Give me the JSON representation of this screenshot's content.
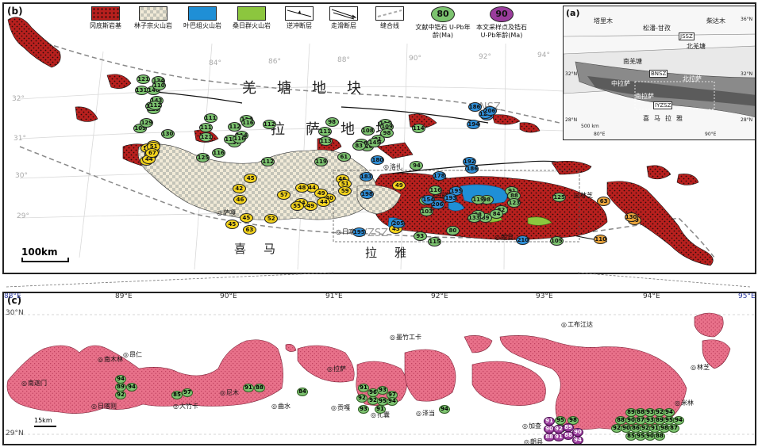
{
  "panel_b": {
    "label": "(b)",
    "legend": [
      {
        "key": "gangdese",
        "label": "冈底斯岩基",
        "swatch": "#b8201e"
      },
      {
        "key": "linzizong",
        "label": "林子宗火山岩",
        "swatch": "#c9bfa8"
      },
      {
        "key": "yeba",
        "label": "叶巴组火山岩",
        "swatch": "#1f8fd6"
      },
      {
        "key": "sangri",
        "label": "桑日群火山岩",
        "swatch": "#8cc63e"
      },
      {
        "key": "thrust",
        "label": "逆冲断层"
      },
      {
        "key": "strike_slip",
        "label": "走滑断层"
      },
      {
        "key": "suture",
        "label": "缝合线"
      },
      {
        "key": "lit_age",
        "label": "文献中锆石 U-Pb年龄(Ma)",
        "symbol_value": "80",
        "color": "#7cc36f"
      },
      {
        "key": "this_age",
        "label": "本文采样点及锆石 U-Pb年龄(Ma)",
        "symbol_value": "90",
        "color": "#9a3c9c"
      }
    ],
    "region_labels": {
      "qiangtang": "羌塘地块",
      "lhasa": "拉萨地块",
      "himalaya_west": "喜马",
      "himalaya_east": "拉雅"
    },
    "suture_labels": {
      "bnsz": "BNSZ",
      "yzsz": "YZSZ"
    },
    "cities": {
      "lhasa": "拉萨",
      "luozha": "洛扎",
      "linzhi": "林芝",
      "shigatse": "日喀则",
      "sagar": "萨嘎",
      "langxian": "朗县"
    },
    "lon_ticks": [
      "84°",
      "86°",
      "88°",
      "90°",
      "92°",
      "94°"
    ],
    "lat_ticks": [
      "32°",
      "31°",
      "30°",
      "29°"
    ],
    "scale": "100km",
    "ages_green": [
      "110",
      "131",
      "117",
      "109",
      "143",
      "129",
      "134",
      "146",
      "110",
      "112",
      "121",
      "130",
      "107",
      "111",
      "111",
      "125",
      "114",
      "116",
      "114",
      "112",
      "116",
      "116",
      "111",
      "112",
      "121",
      "112",
      "116",
      "111",
      "118",
      "119",
      "81",
      "61",
      "116",
      "108",
      "109",
      "145",
      "98",
      "94",
      "113",
      "114",
      "83",
      "98",
      "89",
      "95",
      "88",
      "93",
      "82",
      "80",
      "91",
      "98",
      "88",
      "84",
      "116",
      "105",
      "103",
      "125",
      "133",
      "123",
      "115",
      "119"
    ],
    "ages_yellow": [
      "51",
      "57",
      "52",
      "50",
      "52",
      "44",
      "50",
      "51",
      "51",
      "67",
      "49",
      "42",
      "44",
      "45",
      "40",
      "52",
      "46",
      "44",
      "51",
      "44",
      "45",
      "43",
      "46",
      "49",
      "55",
      "59",
      "63",
      "48",
      "49",
      "45",
      "57"
    ],
    "ages_blue": [
      "175",
      "186",
      "120",
      "194",
      "206",
      "206",
      "183",
      "154",
      "195",
      "195",
      "205",
      "192",
      "178",
      "186",
      "193",
      "180",
      "210",
      "198"
    ],
    "ages_orange": [
      "59",
      "63",
      "130",
      "110"
    ]
  },
  "panel_a": {
    "label": "(a)",
    "places": [
      "塔里木",
      "柴达木",
      "松潘-甘孜",
      "北羌塘",
      "南羌塘",
      "中拉萨",
      "北拉萨",
      "南拉萨",
      "喜马拉雅"
    ],
    "sutures": [
      "JSSZ",
      "BNSZ",
      "IYZSZ"
    ],
    "ticks": [
      "80°E",
      "90°E",
      "36°N",
      "32°N",
      "28°N",
      "32°N",
      "28°N"
    ],
    "scale": "500 km"
  },
  "panel_c": {
    "label": "(c)",
    "lon_ticks": [
      "88°E",
      "89°E",
      "90°E",
      "91°E",
      "92°E",
      "93°E",
      "94°E",
      "95°E"
    ],
    "lat_ticks": [
      "30°N",
      "29°N"
    ],
    "scale": "15km",
    "cities": [
      {
        "name": "南木林"
      },
      {
        "name": "昂仁"
      },
      {
        "name": "南迦门"
      },
      {
        "name": "日喀则"
      },
      {
        "name": "大竹卡"
      },
      {
        "name": "尼木"
      },
      {
        "name": "曲水"
      },
      {
        "name": "拉萨"
      },
      {
        "name": "贡嘎"
      },
      {
        "name": "扎囊"
      },
      {
        "name": "泽当"
      },
      {
        "name": "墨竹工卡"
      },
      {
        "name": "加查"
      },
      {
        "name": "朗县"
      },
      {
        "name": "工布江达"
      },
      {
        "name": "米林"
      },
      {
        "name": "林芝"
      }
    ],
    "ages_green": [
      "94",
      "89",
      "94",
      "92",
      "85",
      "97",
      "91",
      "88",
      "84",
      "91",
      "96",
      "93",
      "97",
      "92",
      "92",
      "95",
      "94",
      "93",
      "91",
      "94",
      "95",
      "98",
      "88",
      "89",
      "88",
      "93",
      "92",
      "94",
      "88",
      "90",
      "87",
      "93",
      "89",
      "95",
      "94",
      "92",
      "90",
      "86",
      "92",
      "91",
      "98",
      "87",
      "85",
      "95",
      "90",
      "88"
    ],
    "ages_purple": [
      "91",
      "90",
      "92",
      "89",
      "88",
      "88",
      "91",
      "90",
      "94"
    ]
  }
}
